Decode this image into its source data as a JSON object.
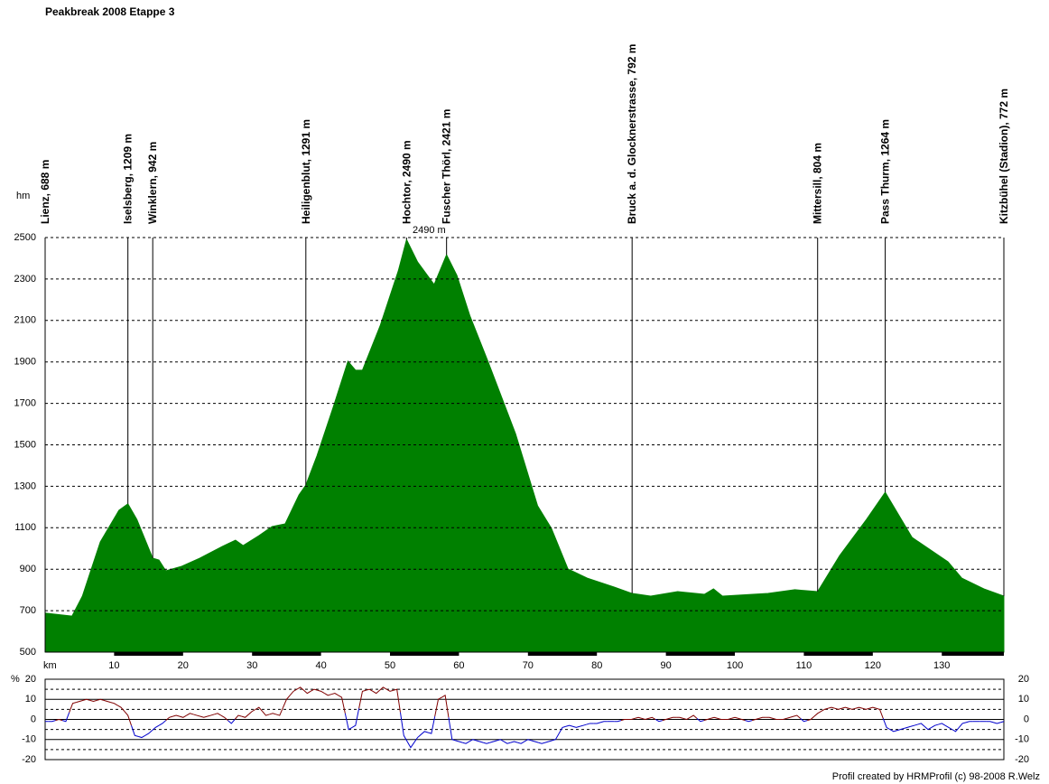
{
  "chart_data": [
    {
      "type": "area",
      "title": "Peakbreak 2008 Etappe 3",
      "y_label": "hm",
      "x_label": "km",
      "color": "#008000",
      "x": [
        0,
        3.9,
        5.4,
        8,
        10.7,
        12,
        13.3,
        15.6,
        16.5,
        17.5,
        19.8,
        22.4,
        25.7,
        27.6,
        28.7,
        31,
        32.9,
        34.8,
        36.8,
        37.8,
        39.4,
        41.8,
        43.9,
        45,
        46,
        48.6,
        51.2,
        52.4,
        54,
        56.4,
        58.2,
        59.7,
        61.6,
        64.2,
        68.2,
        71.4,
        73.4,
        75.8,
        78.6,
        82.5,
        85.1,
        87.8,
        91.7,
        95.6,
        96.9,
        98.2,
        104.8,
        108.7,
        112,
        115.2,
        119.1,
        121.8,
        125.7,
        130.9,
        132.9,
        136.1,
        139
      ],
      "values": [
        688,
        674,
        770,
        1032,
        1184,
        1215,
        1140,
        953,
        944,
        892,
        914,
        953,
        1010,
        1040,
        1014,
        1062,
        1106,
        1119,
        1258,
        1306,
        1446,
        1685,
        1903,
        1860,
        1860,
        2077,
        2339,
        2490,
        2382,
        2273,
        2417,
        2317,
        2121,
        1903,
        1554,
        1206,
        1097,
        901,
        857,
        814,
        783,
        770,
        792,
        779,
        805,
        770,
        783,
        801,
        792,
        966,
        1141,
        1271,
        1053,
        936,
        857,
        805,
        770
      ],
      "xlim": [
        0,
        139
      ],
      "xticks": [
        10,
        20,
        30,
        40,
        50,
        60,
        70,
        80,
        90,
        100,
        110,
        120,
        130
      ],
      "ylim": [
        500,
        2500
      ],
      "yticks": [
        500,
        700,
        900,
        1100,
        1300,
        1500,
        1700,
        1900,
        2100,
        2300,
        2500
      ],
      "grid": true,
      "max_label": "2490 m",
      "max_color": "#ff0000",
      "waypoints": [
        {
          "label": "Lienz, 688 m",
          "km": 0
        },
        {
          "label": "Iselsberg, 1209 m",
          "km": 12
        },
        {
          "label": "Winklern, 942 m",
          "km": 15.6
        },
        {
          "label": "Heiligenblut, 1291 m",
          "km": 37.8
        },
        {
          "label": "Hochtor, 2490 m",
          "km": 52.4
        },
        {
          "label": "Fuscher Thörl, 2421 m",
          "km": 58.2
        },
        {
          "label": "Bruck a. d. Glocknerstrasse, 792 m",
          "km": 85.1
        },
        {
          "label": "Mittersill, 804 m",
          "km": 112
        },
        {
          "label": "Pass Thurm, 1264 m",
          "km": 121.8
        },
        {
          "label": "Kitzbühel (Stadion), 772 m",
          "km": 139
        }
      ]
    },
    {
      "type": "gradient",
      "y_label": "%",
      "positive_color": "#800000",
      "negative_color": "#0000cc",
      "x": [
        0,
        1,
        2,
        3,
        4,
        5,
        6,
        7,
        8,
        9,
        10,
        11,
        12,
        13,
        14,
        15,
        16,
        17,
        18,
        19,
        20,
        21,
        22,
        23,
        24,
        25,
        26,
        27,
        28,
        29,
        30,
        31,
        32,
        33,
        34,
        35,
        36,
        37,
        38,
        39,
        40,
        41,
        42,
        43,
        44,
        45,
        46,
        47,
        48,
        49,
        50,
        51,
        52,
        53,
        54,
        55,
        56,
        57,
        58,
        59,
        60,
        61,
        62,
        63,
        64,
        65,
        66,
        67,
        68,
        69,
        70,
        71,
        72,
        73,
        74,
        75,
        76,
        77,
        78,
        79,
        80,
        81,
        82,
        83,
        84,
        85,
        86,
        87,
        88,
        89,
        90,
        91,
        92,
        93,
        94,
        95,
        96,
        97,
        98,
        99,
        100,
        101,
        102,
        103,
        104,
        105,
        106,
        107,
        108,
        109,
        110,
        111,
        112,
        113,
        114,
        115,
        116,
        117,
        118,
        119,
        120,
        121,
        122,
        123,
        124,
        125,
        126,
        127,
        128,
        129,
        130,
        131,
        132,
        133,
        134,
        135,
        136,
        137,
        138,
        139
      ],
      "values": [
        -1,
        -1,
        0,
        -1,
        8,
        9,
        10,
        9,
        10,
        9,
        8,
        6,
        2,
        -8,
        -9,
        -7,
        -4,
        -2,
        1,
        2,
        1,
        3,
        2,
        1,
        2,
        3,
        1,
        -2,
        2,
        1,
        4,
        6,
        2,
        3,
        2,
        10,
        14,
        16,
        13,
        15,
        14,
        12,
        13,
        11,
        -5,
        -3,
        14,
        15,
        13,
        16,
        14,
        15,
        -8,
        -14,
        -9,
        -6,
        -7,
        10,
        12,
        -10,
        -11,
        -12,
        -10,
        -11,
        -12,
        -11,
        -10,
        -12,
        -11,
        -12,
        -10,
        -11,
        -12,
        -11,
        -10,
        -4,
        -3,
        -4,
        -3,
        -2,
        -2,
        -1,
        -1,
        -1,
        0,
        0,
        1,
        0,
        1,
        -1,
        0,
        1,
        1,
        0,
        2,
        -1,
        0,
        1,
        0,
        0,
        1,
        0,
        -1,
        0,
        1,
        1,
        0,
        0,
        1,
        2,
        -1,
        0,
        3,
        5,
        6,
        5,
        6,
        5,
        6,
        5,
        6,
        5,
        -4,
        -6,
        -5,
        -4,
        -3,
        -2,
        -5,
        -3,
        -2,
        -4,
        -6,
        -2,
        -1,
        -1,
        -1,
        -1,
        -2,
        -1
      ],
      "xlim": [
        0,
        139
      ],
      "ylim": [
        -20,
        20
      ],
      "yticks": [
        -20,
        -10,
        0,
        10,
        20
      ],
      "minor_yticks": [
        -15,
        -5,
        5,
        15
      ],
      "grid": true,
      "credit": "Profil created by HRMProfil (c) 98-2008 R.Welz"
    }
  ]
}
